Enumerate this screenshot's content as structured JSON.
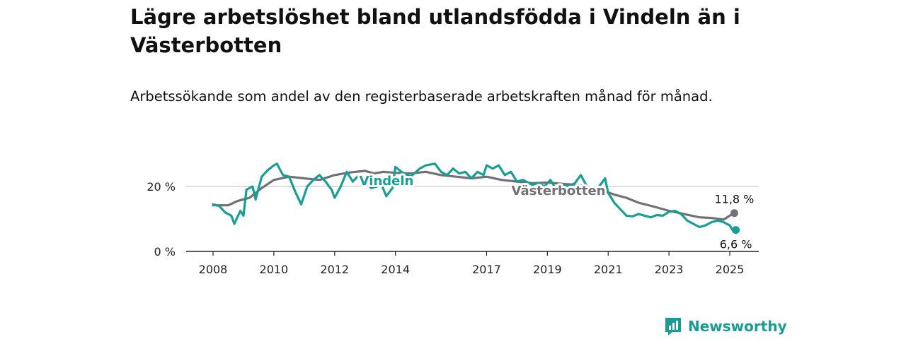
{
  "title": "Lägre arbetslöshet bland utlandsfödda i Vindeln än i Västerbotten",
  "subtitle": "Arbetssökande som andel av den registerbaserade arbetskraften månad för månad.",
  "brand": "Newsworthy",
  "colors": {
    "vindeln": "#1a9e93",
    "vasterbotten": "#717077",
    "grid": "#d3d3d3",
    "axis": "#222222"
  },
  "chart_data": {
    "type": "line",
    "x_axis": {
      "type": "time",
      "ticks": [
        2008,
        2010,
        2012,
        2014,
        2017,
        2019,
        2021,
        2023,
        2025
      ],
      "range": [
        2007.6,
        2026.0
      ]
    },
    "y_axis": {
      "range": [
        0,
        28
      ],
      "ticks": [
        {
          "value": 0,
          "label": "0 %"
        },
        {
          "value": 20,
          "label": "20 %"
        }
      ],
      "grid": true
    },
    "series": [
      {
        "name": "Västerbotten",
        "color": "#717077",
        "inline_label": "Västerbotten",
        "end_label": "11,8 %",
        "points": [
          [
            2008.0,
            14.2
          ],
          [
            2008.5,
            14.2
          ],
          [
            2008.8,
            15.5
          ],
          [
            2009.2,
            16.5
          ],
          [
            2009.6,
            19.5
          ],
          [
            2010.0,
            22.0
          ],
          [
            2010.5,
            23.0
          ],
          [
            2011.0,
            22.5
          ],
          [
            2011.5,
            22.0
          ],
          [
            2012.0,
            23.5
          ],
          [
            2012.5,
            24.3
          ],
          [
            2013.0,
            24.8
          ],
          [
            2013.3,
            24.0
          ],
          [
            2013.6,
            24.5
          ],
          [
            2014.0,
            24.2
          ],
          [
            2014.5,
            24.0
          ],
          [
            2015.0,
            24.5
          ],
          [
            2015.5,
            23.5
          ],
          [
            2016.0,
            23.0
          ],
          [
            2016.5,
            22.5
          ],
          [
            2017.0,
            23.0
          ],
          [
            2017.5,
            22.0
          ],
          [
            2018.0,
            21.5
          ],
          [
            2018.5,
            21.0
          ],
          [
            2019.0,
            21.2
          ],
          [
            2019.5,
            20.8
          ],
          [
            2020.0,
            20.5
          ],
          [
            2020.5,
            19.5
          ],
          [
            2020.9,
            18.5
          ],
          [
            2021.2,
            17.5
          ],
          [
            2021.6,
            16.5
          ],
          [
            2022.0,
            15.0
          ],
          [
            2022.5,
            13.8
          ],
          [
            2023.0,
            12.5
          ],
          [
            2023.5,
            11.5
          ],
          [
            2024.0,
            10.5
          ],
          [
            2024.4,
            10.3
          ],
          [
            2024.8,
            9.8
          ],
          [
            2025.0,
            11.0
          ],
          [
            2025.15,
            11.8
          ]
        ]
      },
      {
        "name": "Vindeln",
        "color": "#1a9e93",
        "inline_label": "Vindeln",
        "end_label": "6,6 %",
        "points": [
          [
            2008.0,
            14.5
          ],
          [
            2008.2,
            14.0
          ],
          [
            2008.4,
            12.0
          ],
          [
            2008.6,
            11.0
          ],
          [
            2008.7,
            8.5
          ],
          [
            2008.9,
            12.5
          ],
          [
            2009.0,
            11.0
          ],
          [
            2009.1,
            19.0
          ],
          [
            2009.3,
            20.0
          ],
          [
            2009.4,
            16.0
          ],
          [
            2009.6,
            23.0
          ],
          [
            2009.8,
            25.0
          ],
          [
            2010.0,
            26.5
          ],
          [
            2010.1,
            27.0
          ],
          [
            2010.3,
            23.5
          ],
          [
            2010.5,
            23.0
          ],
          [
            2010.7,
            18.5
          ],
          [
            2010.9,
            14.5
          ],
          [
            2011.1,
            20.0
          ],
          [
            2011.3,
            22.0
          ],
          [
            2011.5,
            23.5
          ],
          [
            2011.7,
            21.5
          ],
          [
            2011.9,
            19.0
          ],
          [
            2012.0,
            16.5
          ],
          [
            2012.2,
            20.0
          ],
          [
            2012.4,
            24.5
          ],
          [
            2012.6,
            21.5
          ],
          [
            2012.8,
            23.5
          ],
          [
            2013.0,
            22.0
          ],
          [
            2013.2,
            19.5
          ],
          [
            2013.4,
            20.0
          ],
          [
            2013.5,
            21.5
          ],
          [
            2013.7,
            17.0
          ],
          [
            2013.9,
            19.5
          ],
          [
            2014.0,
            26.0
          ],
          [
            2014.2,
            24.5
          ],
          [
            2014.5,
            23.0
          ],
          [
            2014.8,
            25.5
          ],
          [
            2015.0,
            26.5
          ],
          [
            2015.3,
            27.0
          ],
          [
            2015.5,
            24.5
          ],
          [
            2015.7,
            23.5
          ],
          [
            2015.9,
            25.5
          ],
          [
            2016.1,
            24.0
          ],
          [
            2016.3,
            24.5
          ],
          [
            2016.5,
            22.5
          ],
          [
            2016.7,
            24.5
          ],
          [
            2016.9,
            23.5
          ],
          [
            2017.0,
            26.5
          ],
          [
            2017.2,
            25.5
          ],
          [
            2017.4,
            26.5
          ],
          [
            2017.6,
            23.5
          ],
          [
            2017.8,
            24.5
          ],
          [
            2018.0,
            21.5
          ],
          [
            2018.2,
            22.0
          ],
          [
            2018.5,
            20.5
          ],
          [
            2018.7,
            21.0
          ],
          [
            2018.9,
            20.0
          ],
          [
            2019.1,
            22.0
          ],
          [
            2019.3,
            19.0
          ],
          [
            2019.5,
            20.5
          ],
          [
            2019.7,
            20.0
          ],
          [
            2019.9,
            21.0
          ],
          [
            2020.1,
            23.5
          ],
          [
            2020.3,
            20.0
          ],
          [
            2020.5,
            18.5
          ],
          [
            2020.7,
            20.0
          ],
          [
            2020.9,
            22.5
          ],
          [
            2021.0,
            18.0
          ],
          [
            2021.2,
            15.0
          ],
          [
            2021.4,
            13.0
          ],
          [
            2021.6,
            11.0
          ],
          [
            2021.8,
            10.8
          ],
          [
            2022.0,
            11.5
          ],
          [
            2022.2,
            11.0
          ],
          [
            2022.4,
            10.5
          ],
          [
            2022.6,
            11.2
          ],
          [
            2022.8,
            11.0
          ],
          [
            2023.0,
            12.2
          ],
          [
            2023.2,
            12.5
          ],
          [
            2023.4,
            11.5
          ],
          [
            2023.6,
            9.5
          ],
          [
            2023.8,
            8.5
          ],
          [
            2024.0,
            7.5
          ],
          [
            2024.2,
            8.0
          ],
          [
            2024.4,
            9.0
          ],
          [
            2024.6,
            9.5
          ],
          [
            2024.8,
            9.0
          ],
          [
            2025.0,
            8.0
          ],
          [
            2025.1,
            6.5
          ],
          [
            2025.2,
            6.6
          ]
        ]
      }
    ]
  }
}
